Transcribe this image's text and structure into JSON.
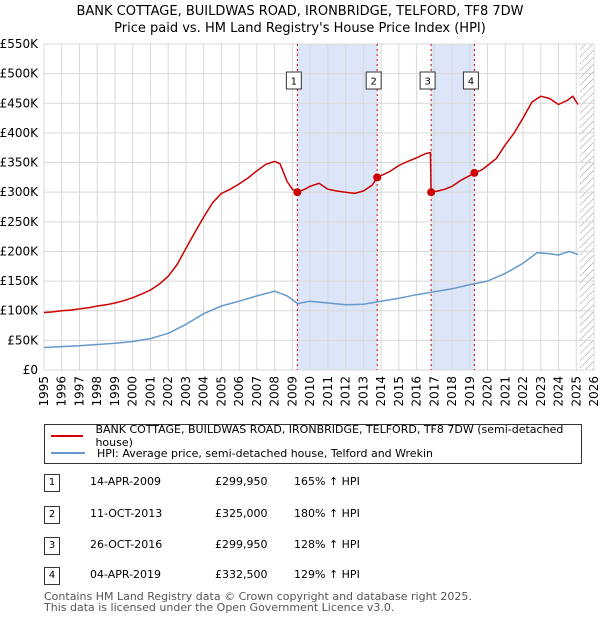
{
  "title_line1": "BANK COTTAGE, BUILDWAS ROAD, IRONBRIDGE, TELFORD, TF8 7DW",
  "title_line2": "Price paid vs. HM Land Registry's House Price Index (HPI)",
  "chart_data": {
    "type": "line",
    "xlim": [
      1995,
      2026
    ],
    "ylim": [
      0,
      550000
    ],
    "y_ticks": [
      {
        "value": 0,
        "label": "£0"
      },
      {
        "value": 50000,
        "label": "£50K"
      },
      {
        "value": 100000,
        "label": "£100K"
      },
      {
        "value": 150000,
        "label": "£150K"
      },
      {
        "value": 200000,
        "label": "£200K"
      },
      {
        "value": 250000,
        "label": "£250K"
      },
      {
        "value": 300000,
        "label": "£300K"
      },
      {
        "value": 350000,
        "label": "£350K"
      },
      {
        "value": 400000,
        "label": "£400K"
      },
      {
        "value": 450000,
        "label": "£450K"
      },
      {
        "value": 500000,
        "label": "£500K"
      },
      {
        "value": 550000,
        "label": "£550K"
      }
    ],
    "x_ticks": [
      1995,
      1996,
      1997,
      1998,
      1999,
      2000,
      2001,
      2002,
      2003,
      2004,
      2005,
      2006,
      2007,
      2008,
      2009,
      2010,
      2011,
      2012,
      2013,
      2014,
      2015,
      2016,
      2017,
      2018,
      2019,
      2020,
      2021,
      2022,
      2023,
      2024,
      2025,
      2026
    ],
    "grid": true,
    "series": [
      {
        "name": "BANK COTTAGE, BUILDWAS ROAD, IRONBRIDGE, TELFORD, TF8 7DW (semi-detached house)",
        "color": "#cc0000",
        "points": [
          [
            1995.0,
            97000
          ],
          [
            1995.5,
            98000
          ],
          [
            1996.0,
            100000
          ],
          [
            1996.5,
            101000
          ],
          [
            1997.0,
            103000
          ],
          [
            1997.5,
            105000
          ],
          [
            1998.0,
            108000
          ],
          [
            1998.5,
            110000
          ],
          [
            1999.0,
            113000
          ],
          [
            1999.5,
            117000
          ],
          [
            2000.0,
            122000
          ],
          [
            2000.5,
            128000
          ],
          [
            2001.0,
            135000
          ],
          [
            2001.5,
            145000
          ],
          [
            2002.0,
            158000
          ],
          [
            2002.5,
            178000
          ],
          [
            2003.0,
            205000
          ],
          [
            2003.5,
            232000
          ],
          [
            2004.0,
            258000
          ],
          [
            2004.5,
            282000
          ],
          [
            2005.0,
            298000
          ],
          [
            2005.5,
            305000
          ],
          [
            2006.0,
            314000
          ],
          [
            2006.5,
            324000
          ],
          [
            2007.0,
            336000
          ],
          [
            2007.5,
            347000
          ],
          [
            2008.0,
            352000
          ],
          [
            2008.3,
            348000
          ],
          [
            2008.7,
            318000
          ],
          [
            2009.0,
            305000
          ],
          [
            2009.28,
            299950
          ],
          [
            2009.7,
            305000
          ],
          [
            2010.0,
            310000
          ],
          [
            2010.5,
            315000
          ],
          [
            2011.0,
            305000
          ],
          [
            2011.5,
            302000
          ],
          [
            2012.0,
            300000
          ],
          [
            2012.5,
            298000
          ],
          [
            2013.0,
            302000
          ],
          [
            2013.5,
            312000
          ],
          [
            2013.78,
            325000
          ],
          [
            2014.0,
            328000
          ],
          [
            2014.5,
            335000
          ],
          [
            2015.0,
            345000
          ],
          [
            2015.5,
            352000
          ],
          [
            2016.0,
            358000
          ],
          [
            2016.5,
            365000
          ],
          [
            2016.78,
            367000
          ],
          [
            2016.82,
            299950
          ],
          [
            2017.2,
            302000
          ],
          [
            2017.6,
            305000
          ],
          [
            2018.0,
            310000
          ],
          [
            2018.5,
            320000
          ],
          [
            2019.0,
            328000
          ],
          [
            2019.26,
            332500
          ],
          [
            2019.7,
            338000
          ],
          [
            2020.0,
            345000
          ],
          [
            2020.5,
            357000
          ],
          [
            2021.0,
            380000
          ],
          [
            2021.5,
            400000
          ],
          [
            2022.0,
            425000
          ],
          [
            2022.5,
            452000
          ],
          [
            2023.0,
            462000
          ],
          [
            2023.5,
            458000
          ],
          [
            2024.0,
            448000
          ],
          [
            2024.5,
            455000
          ],
          [
            2024.8,
            462000
          ],
          [
            2025.1,
            448000
          ]
        ]
      },
      {
        "name": "HPI: Average price, semi-detached house, Telford and Wrekin",
        "color": "#6699cc",
        "points": [
          [
            1995.0,
            38000
          ],
          [
            1996.0,
            39500
          ],
          [
            1997.0,
            41000
          ],
          [
            1998.0,
            43000
          ],
          [
            1999.0,
            45000
          ],
          [
            2000.0,
            48000
          ],
          [
            2001.0,
            53000
          ],
          [
            2002.0,
            62000
          ],
          [
            2003.0,
            77000
          ],
          [
            2004.0,
            95000
          ],
          [
            2005.0,
            108000
          ],
          [
            2006.0,
            116000
          ],
          [
            2007.0,
            125000
          ],
          [
            2008.0,
            133000
          ],
          [
            2008.7,
            125000
          ],
          [
            2009.3,
            112000
          ],
          [
            2010.0,
            116000
          ],
          [
            2011.0,
            113000
          ],
          [
            2012.0,
            110000
          ],
          [
            2013.0,
            111000
          ],
          [
            2014.0,
            116000
          ],
          [
            2015.0,
            121000
          ],
          [
            2016.0,
            127000
          ],
          [
            2017.0,
            132000
          ],
          [
            2018.0,
            137000
          ],
          [
            2019.0,
            144000
          ],
          [
            2020.0,
            150000
          ],
          [
            2021.0,
            163000
          ],
          [
            2022.0,
            180000
          ],
          [
            2022.8,
            198000
          ],
          [
            2023.5,
            196000
          ],
          [
            2024.0,
            194000
          ],
          [
            2024.6,
            200000
          ],
          [
            2025.1,
            195000
          ]
        ]
      }
    ],
    "shaded_ranges": [
      [
        2009.28,
        2013.78
      ],
      [
        2016.82,
        2019.26
      ]
    ],
    "future_hatch_from": 2025.2,
    "markers": [
      {
        "id": "1",
        "x": 2009.28,
        "y": 299950
      },
      {
        "id": "2",
        "x": 2013.78,
        "y": 325000
      },
      {
        "id": "3",
        "x": 2016.82,
        "y": 299950
      },
      {
        "id": "4",
        "x": 2019.26,
        "y": 332500
      }
    ]
  },
  "legend": [
    {
      "label": "BANK COTTAGE, BUILDWAS ROAD, IRONBRIDGE, TELFORD, TF8 7DW (semi-detached house)",
      "color": "#cc0000"
    },
    {
      "label": "HPI: Average price, semi-detached house, Telford and Wrekin",
      "color": "#6699cc"
    }
  ],
  "transactions": [
    {
      "id": "1",
      "date": "14-APR-2009",
      "price": "£299,950",
      "hpi": "165% ↑ HPI"
    },
    {
      "id": "2",
      "date": "11-OCT-2013",
      "price": "£325,000",
      "hpi": "180% ↑ HPI"
    },
    {
      "id": "3",
      "date": "26-OCT-2016",
      "price": "£299,950",
      "hpi": "128% ↑ HPI"
    },
    {
      "id": "4",
      "date": "04-APR-2019",
      "price": "£332,500",
      "hpi": "129% ↑ HPI"
    }
  ],
  "footer_line1": "Contains HM Land Registry data © Crown copyright and database right 2025.",
  "footer_line2": "This data is licensed under the Open Government Licence v3.0."
}
